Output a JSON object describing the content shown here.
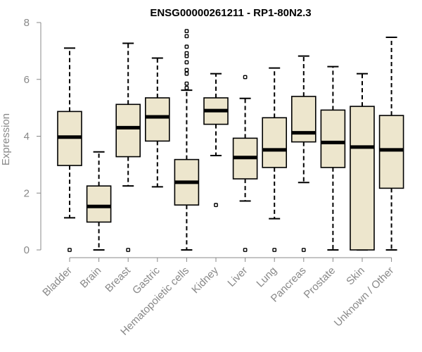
{
  "chart_data": {
    "type": "boxplot",
    "title": "ENSG00000261211 - RP1-80N2.3",
    "xlabel": "",
    "ylabel": "Expression",
    "ylim": [
      0,
      8
    ],
    "yticks": [
      0,
      2,
      4,
      6,
      8
    ],
    "categories": [
      "Bladder",
      "Brain",
      "Breast",
      "Gastric",
      "Hematopoietic cells",
      "Kidney",
      "Liver",
      "Lung",
      "Pancreas",
      "Prostate",
      "Skin",
      "Unknown / Other"
    ],
    "boxes": [
      {
        "q1": 2.97,
        "median": 3.97,
        "q3": 4.87,
        "whisker_low": 1.13,
        "whisker_high": 7.1,
        "outliers": [
          0.0
        ]
      },
      {
        "q1": 0.98,
        "median": 1.53,
        "q3": 2.25,
        "whisker_low": 0.0,
        "whisker_high": 3.45,
        "outliers": []
      },
      {
        "q1": 3.28,
        "median": 4.3,
        "q3": 5.12,
        "whisker_low": 2.25,
        "whisker_high": 7.27,
        "outliers": [
          0.0
        ]
      },
      {
        "q1": 3.83,
        "median": 4.68,
        "q3": 5.35,
        "whisker_low": 2.22,
        "whisker_high": 6.75,
        "outliers": []
      },
      {
        "q1": 1.58,
        "median": 2.38,
        "q3": 3.18,
        "whisker_low": 0.0,
        "whisker_high": 5.62,
        "outliers": [
          5.7,
          5.85,
          6.2,
          6.33,
          6.6,
          6.82,
          6.92,
          7.15,
          7.52,
          7.7
        ]
      },
      {
        "q1": 4.42,
        "median": 4.9,
        "q3": 5.35,
        "whisker_low": 3.32,
        "whisker_high": 6.2,
        "outliers": [
          1.58
        ]
      },
      {
        "q1": 2.5,
        "median": 3.25,
        "q3": 3.93,
        "whisker_low": 1.72,
        "whisker_high": 5.33,
        "outliers": [
          0.0,
          6.08
        ]
      },
      {
        "q1": 2.9,
        "median": 3.52,
        "q3": 4.65,
        "whisker_low": 1.1,
        "whisker_high": 6.4,
        "outliers": [
          0.0
        ]
      },
      {
        "q1": 3.8,
        "median": 4.12,
        "q3": 5.4,
        "whisker_low": 2.37,
        "whisker_high": 6.82,
        "outliers": [
          0.0
        ]
      },
      {
        "q1": 2.9,
        "median": 3.78,
        "q3": 4.92,
        "whisker_low": 0.0,
        "whisker_high": 6.45,
        "outliers": []
      },
      {
        "q1": 0.0,
        "median": 3.62,
        "q3": 5.05,
        "whisker_low": 0.0,
        "whisker_high": 6.2,
        "outliers": []
      },
      {
        "q1": 2.17,
        "median": 3.52,
        "q3": 4.73,
        "whisker_low": 0.0,
        "whisker_high": 7.48,
        "outliers": []
      }
    ],
    "colors": {
      "box_fill": "#ede6cd",
      "box_stroke": "#000000",
      "axis": "#888888"
    }
  }
}
